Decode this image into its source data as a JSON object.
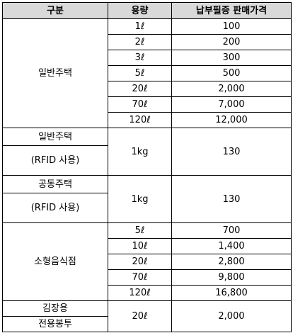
{
  "table": {
    "headers": [
      "구분",
      "용량",
      "납부필증 판매가격"
    ],
    "groups": [
      {
        "category_lines": [
          "일반주택"
        ],
        "rows": [
          {
            "volume": "1ℓ",
            "price": "100"
          },
          {
            "volume": "2ℓ",
            "price": "200"
          },
          {
            "volume": "3ℓ",
            "price": "300"
          },
          {
            "volume": "5ℓ",
            "price": "500"
          },
          {
            "volume": "20ℓ",
            "price": "2,000"
          },
          {
            "volume": "70ℓ",
            "price": "7,000"
          },
          {
            "volume": "120ℓ",
            "price": "12,000"
          }
        ]
      },
      {
        "category_lines": [
          "일반주택",
          "(RFID 사용)"
        ],
        "rows": [
          {
            "volume": "1kg",
            "price": "130"
          }
        ]
      },
      {
        "category_lines": [
          "공동주택",
          "(RFID 사용)"
        ],
        "rows": [
          {
            "volume": "1kg",
            "price": "130"
          }
        ]
      },
      {
        "category_lines": [
          "소형음식점"
        ],
        "rows": [
          {
            "volume": "5ℓ",
            "price": "700"
          },
          {
            "volume": "10ℓ",
            "price": "1,400"
          },
          {
            "volume": "20ℓ",
            "price": "2,800"
          },
          {
            "volume": "70ℓ",
            "price": "9,800"
          },
          {
            "volume": "120ℓ",
            "price": "16,800"
          }
        ]
      },
      {
        "category_lines": [
          "김장용",
          "전용봉투"
        ],
        "rows": [
          {
            "volume": "20ℓ",
            "price": "2,000"
          }
        ]
      }
    ]
  }
}
